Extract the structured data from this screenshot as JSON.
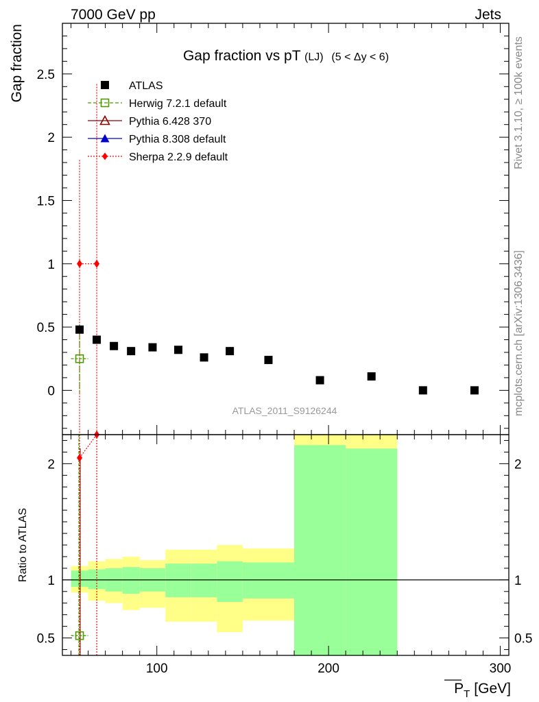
{
  "header": {
    "left": "7000 GeV pp",
    "right": "Jets"
  },
  "side_labels": {
    "rivet": "Rivet 3.1.10, ≥ 100k events",
    "mcplots": "mcplots.cern.ch [arXiv:1306.3436]"
  },
  "chart_data": {
    "type": "scatter",
    "title": "Gap fraction vs pT",
    "title_sub": "(LJ)",
    "title_cut": "(5 < Δy < 6)",
    "watermark": "ATLAS_2011_S9126244",
    "xlabel": "P",
    "xlabel_sub": "T",
    "xlabel_unit": "[GeV]",
    "ylabel": "Gap fraction",
    "ratio_ylabel": "Ratio to ATLAS",
    "xlim": [
      45,
      305
    ],
    "ylim": [
      -0.35,
      2.9
    ],
    "ratio_ylim": [
      0.35,
      2.25
    ],
    "x_ticks": [
      100,
      200,
      300
    ],
    "y_ticks": [
      0,
      0.5,
      1,
      1.5,
      2,
      2.5
    ],
    "ratio_ticks": [
      0.5,
      1,
      2
    ],
    "legend_position": "top-left",
    "series": [
      {
        "name": "ATLAS",
        "color": "#000000",
        "marker": "filled-square",
        "points": [
          {
            "x": 55,
            "y": 0.48
          },
          {
            "x": 65,
            "y": 0.4
          },
          {
            "x": 75,
            "y": 0.35
          },
          {
            "x": 85,
            "y": 0.31
          },
          {
            "x": 97.5,
            "y": 0.34
          },
          {
            "x": 112.5,
            "y": 0.32
          },
          {
            "x": 127.5,
            "y": 0.26
          },
          {
            "x": 142.5,
            "y": 0.31
          },
          {
            "x": 165,
            "y": 0.24
          },
          {
            "x": 195,
            "y": 0.08
          },
          {
            "x": 225,
            "y": 0.11
          },
          {
            "x": 255,
            "y": 0.0
          },
          {
            "x": 285,
            "y": 0.0
          }
        ]
      },
      {
        "name": "Herwig 7.2.1 default",
        "color": "#4a9a00",
        "marker": "open-square",
        "line": "dashed",
        "points": [
          {
            "x": 55,
            "y": 0.25,
            "xerr": 5,
            "ylo": -0.02,
            "yhi": 0.52
          }
        ],
        "ratio_points": [
          {
            "x": 55,
            "y": 0.52
          }
        ]
      },
      {
        "name": "Pythia 6.428 370",
        "color": "#8b0000",
        "marker": "open-triangle",
        "line": "solid",
        "points": []
      },
      {
        "name": "Pythia 8.308 default",
        "color": "#0000cc",
        "marker": "filled-triangle",
        "line": "solid",
        "points": []
      },
      {
        "name": "Sherpa 2.2.9 default",
        "color": "#ff0000",
        "marker": "filled-diamond",
        "line": "dotted",
        "points": [
          {
            "x": 55,
            "y": 1.0,
            "ylo": 0.0,
            "yhi": 1.82
          },
          {
            "x": 65,
            "y": 1.0,
            "ylo": 0.0,
            "yhi": 2.42
          }
        ],
        "ratio_points": [
          {
            "x": 55,
            "y": 2.05
          },
          {
            "x": 65,
            "y": 2.25
          }
        ]
      }
    ],
    "ratio_bands": [
      {
        "x0": 50,
        "x1": 60,
        "g_lo": 0.94,
        "g_hi": 1.08,
        "y_lo": 0.89,
        "y_hi": 1.12
      },
      {
        "x0": 60,
        "x1": 70,
        "g_lo": 0.92,
        "g_hi": 1.09,
        "y_lo": 0.82,
        "y_hi": 1.16
      },
      {
        "x0": 70,
        "x1": 80,
        "g_lo": 0.9,
        "g_hi": 1.1,
        "y_lo": 0.8,
        "y_hi": 1.18
      },
      {
        "x0": 80,
        "x1": 90,
        "g_lo": 0.88,
        "g_hi": 1.11,
        "y_lo": 0.74,
        "y_hi": 1.2
      },
      {
        "x0": 90,
        "x1": 105,
        "g_lo": 0.9,
        "g_hi": 1.1,
        "y_lo": 0.76,
        "y_hi": 1.17
      },
      {
        "x0": 105,
        "x1": 120,
        "g_lo": 0.85,
        "g_hi": 1.14,
        "y_lo": 0.64,
        "y_hi": 1.26
      },
      {
        "x0": 120,
        "x1": 135,
        "g_lo": 0.85,
        "g_hi": 1.14,
        "y_lo": 0.64,
        "y_hi": 1.26
      },
      {
        "x0": 135,
        "x1": 150,
        "g_lo": 0.81,
        "g_hi": 1.16,
        "y_lo": 0.55,
        "y_hi": 1.3
      },
      {
        "x0": 150,
        "x1": 180,
        "g_lo": 0.84,
        "g_hi": 1.15,
        "y_lo": 0.65,
        "y_hi": 1.27
      },
      {
        "x0": 180,
        "x1": 210,
        "g_lo": 0.35,
        "g_hi": 2.16,
        "y_lo": 0.35,
        "y_hi": 2.25
      },
      {
        "x0": 210,
        "x1": 240,
        "g_lo": 0.35,
        "g_hi": 2.13,
        "y_lo": 0.35,
        "y_hi": 2.25
      }
    ]
  }
}
